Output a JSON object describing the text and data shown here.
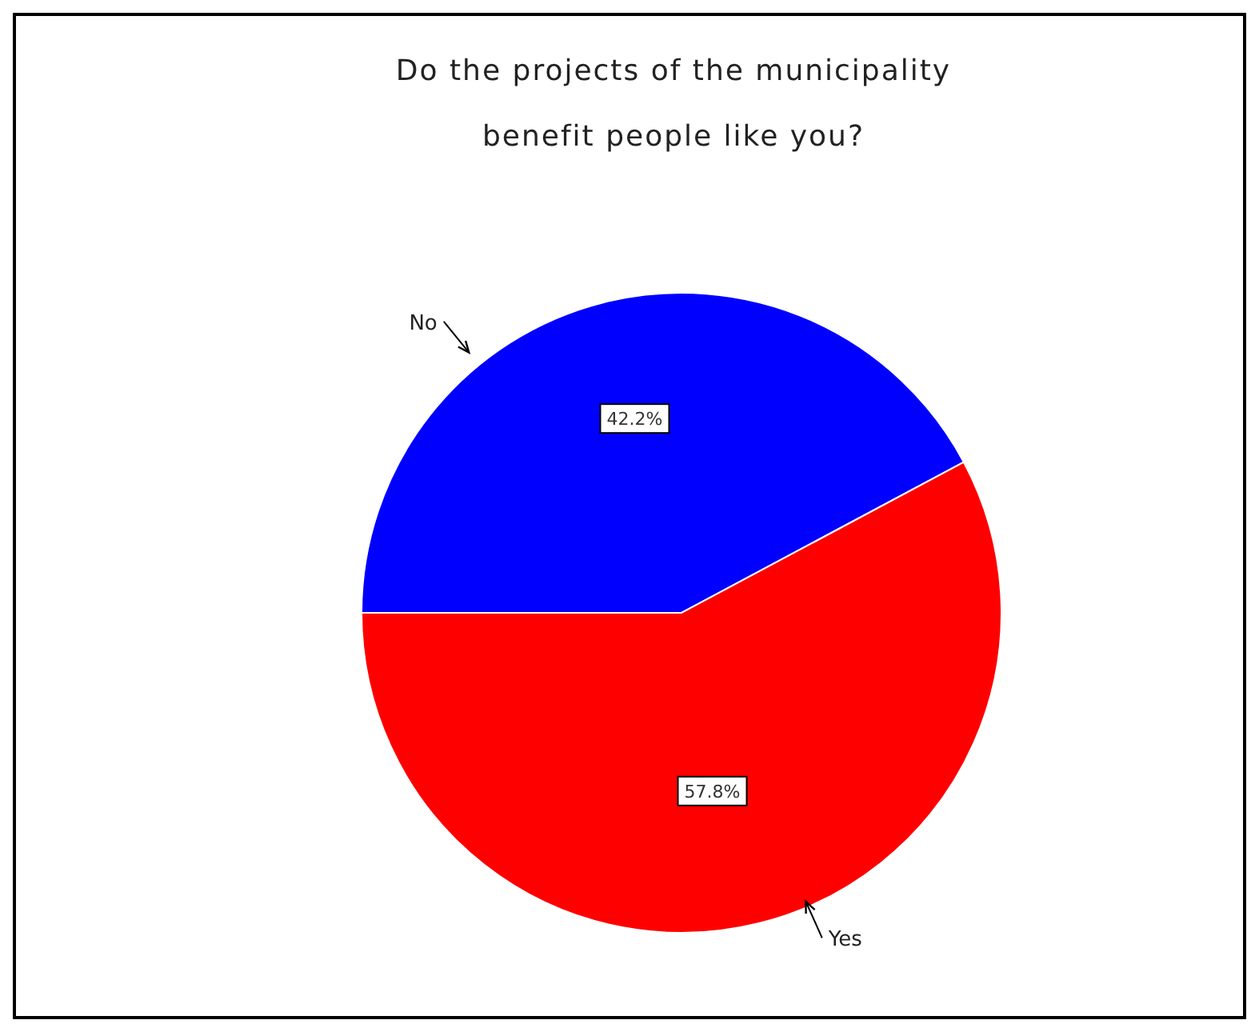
{
  "chart_data": {
    "type": "pie",
    "title": "Do the projects of the municipality\nbenefit people like you?",
    "categories": [
      "No",
      "Yes"
    ],
    "values": [
      42.2,
      57.8
    ],
    "colors": [
      "#0000ff",
      "#ff0000"
    ],
    "value_labels": [
      "42.2%",
      "57.8%"
    ],
    "legend": false
  }
}
